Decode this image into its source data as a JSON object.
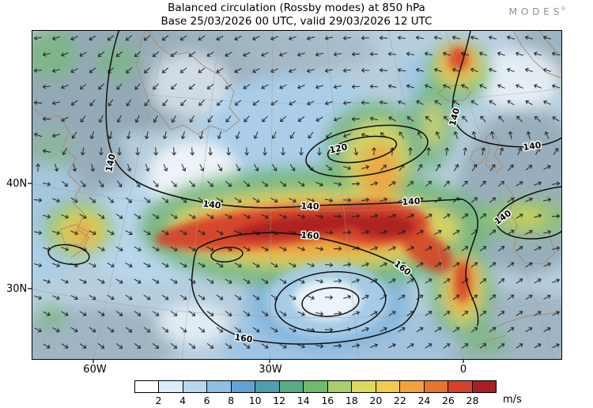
{
  "header": {
    "title": "Balanced circulation (Rossby modes) at 850 hPa",
    "subtitle": "Base 25/03/2026 00 UTC, valid 29/03/2026 12 UTC",
    "logo_text": "MODES",
    "logo_reg": "®"
  },
  "map": {
    "lat_labels": [
      "40N",
      "30N"
    ],
    "lon_labels": [
      "60W",
      "30W",
      "0"
    ],
    "contour_labels": [
      "140",
      "140",
      "140",
      "140",
      "120",
      "140",
      "140",
      "140",
      "160",
      "160",
      "160"
    ]
  },
  "colorbar": {
    "unit": "m/s",
    "ticks": [
      2,
      4,
      6,
      8,
      10,
      12,
      14,
      16,
      18,
      20,
      22,
      24,
      26,
      28
    ],
    "colors": [
      "#ffffff",
      "#dcedf8",
      "#b5d8ef",
      "#8cc0e4",
      "#63a3d4",
      "#4e9fae",
      "#57ab86",
      "#6fbb6d",
      "#a9cf6a",
      "#dcd95e",
      "#f2cc4e",
      "#f2a23d",
      "#e8742e",
      "#d4422a",
      "#a81e22"
    ]
  },
  "chart_data": {
    "type": "heatmap",
    "subtype": "filled-contour weather map with wind arrows and labeled contour lines",
    "title": "Balanced circulation (Rossby modes) at 850 hPa",
    "subtitle": "Base 25/03/2026 00 UTC, valid 29/03/2026 12 UTC",
    "variable": "wind speed",
    "unit": "m/s",
    "level": "850 hPa",
    "base_time": "25/03/2026 00 UTC",
    "valid_time": "29/03/2026 12 UTC",
    "color_levels": [
      2,
      4,
      6,
      8,
      10,
      12,
      14,
      16,
      18,
      20,
      22,
      24,
      26,
      28
    ],
    "colors": [
      "#ffffff",
      "#dcedf8",
      "#b5d8ef",
      "#8cc0e4",
      "#63a3d4",
      "#4e9fae",
      "#57ab86",
      "#6fbb6d",
      "#a9cf6a",
      "#dcd95e",
      "#f2cc4e",
      "#f2a23d",
      "#e8742e",
      "#d4422a",
      "#a81e22"
    ],
    "labeled_contour_values": [
      120,
      140,
      160
    ],
    "x_ticks": [
      "60W",
      "30W",
      "0"
    ],
    "y_ticks": [
      "40N",
      "30N"
    ],
    "features": [
      "Jet streak exceeding 28 m/s stretching WSW-ENE across the central North Atlantic near 33-38N from about 55W to 20W",
      "Closed cyclonic circulation centered near 28N 32W with a calm white core ringed by 160 contours",
      "Narrow north-south band of 18-28 m/s winds near 30N 0E",
      "Wind maximum up to 28 m/s near the top right of the domain north of Iceland toward Norway",
      "Closed 120 contour low near the top center; long 140 contour crossing the basin; 160 contour loop enclosing the jet and vortex"
    ]
  }
}
